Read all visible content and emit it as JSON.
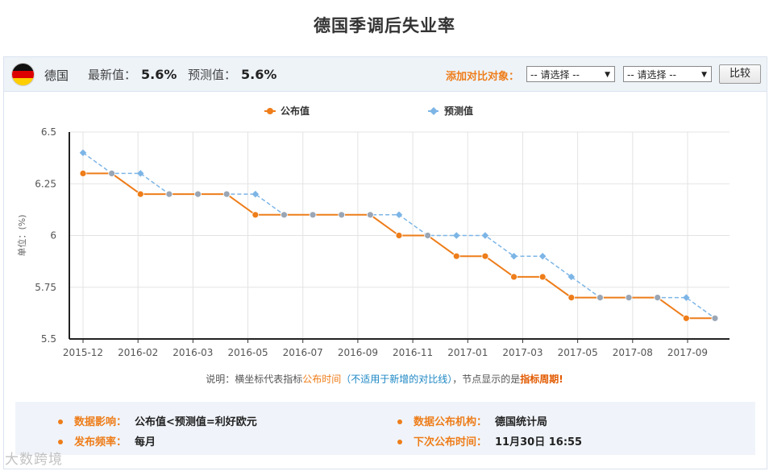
{
  "page": {
    "title": "德国季调后失业率"
  },
  "topbar": {
    "country": "德国",
    "latest_label": "最新值：",
    "latest_value": "5.6%",
    "forecast_label": "预测值：",
    "forecast_value": "5.6%",
    "compare_label": "添加对比对象：",
    "select1": "-- 请选择 --",
    "select2": "-- 请选择 --",
    "compare_button": "比较"
  },
  "chart_data": {
    "type": "line",
    "title": "",
    "ylabel": "单位：(%)",
    "xlabel": "",
    "ylim": [
      5.5,
      6.5
    ],
    "y_ticks": [
      "6.5",
      "6.25",
      "6",
      "5.75",
      "5.5"
    ],
    "x_tick_labels": [
      "2015-12",
      "2016-02",
      "2016-03",
      "2016-05",
      "2016-07",
      "2016-09",
      "2016-11",
      "2017-01",
      "2017-03",
      "2017-05",
      "2017-08",
      "2017-09"
    ],
    "grid": true,
    "legend_position": "top-center",
    "colors": {
      "published": "#ee7d1a",
      "forecast": "#7cb5e6"
    },
    "series": [
      {
        "name": "公布值",
        "style": "solid",
        "values": [
          6.3,
          6.3,
          6.2,
          6.2,
          6.2,
          6.2,
          6.1,
          6.1,
          6.1,
          6.1,
          6.1,
          6.0,
          6.0,
          5.9,
          5.9,
          5.8,
          5.8,
          5.7,
          5.7,
          5.7,
          5.7,
          5.6,
          5.6
        ]
      },
      {
        "name": "预测值",
        "style": "dashed",
        "values": [
          6.4,
          6.3,
          6.3,
          6.2,
          6.2,
          6.2,
          6.2,
          6.1,
          6.1,
          6.1,
          6.1,
          6.1,
          6.0,
          6.0,
          6.0,
          5.9,
          5.9,
          5.8,
          5.7,
          5.7,
          5.7,
          5.7,
          5.6
        ]
      }
    ]
  },
  "note": {
    "p1": "说明：横坐标代表指标",
    "p2": "公布时间",
    "p3": "（不适用于新增的对比线）",
    "p4": "，节点显示的是",
    "p5": "指标周期!"
  },
  "info": {
    "impact_label": "数据影响：",
    "impact_value": "公布值<预测值=利好欧元",
    "freq_label": "发布频率：",
    "freq_value": "每月",
    "org_label": "数据公布机构：",
    "org_value": "德国统计局",
    "next_label": "下次公布时间：",
    "next_value": "11月30日 16:55"
  },
  "watermark": "大数跨境"
}
